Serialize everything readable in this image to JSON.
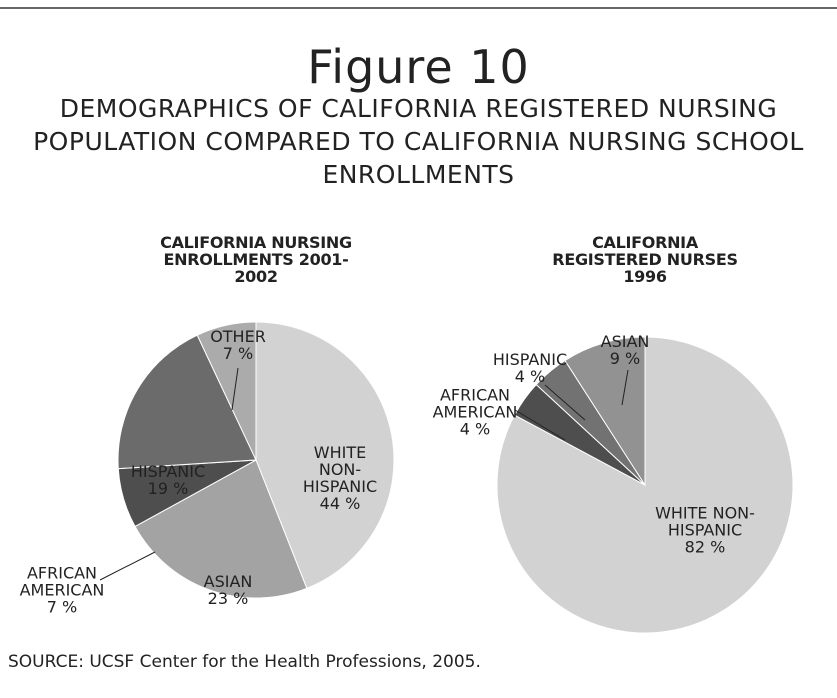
{
  "figure": {
    "title": "Figure 10",
    "subtitle": "DEMOGRAPHICS OF CALIFORNIA REGISTERED NURSING POPULATION COMPARED TO CALIFORNIA NURSING SCHOOL ENROLLMENTS",
    "source": "SOURCE: UCSF Center for the Health Professions, 2005."
  },
  "chart_data": [
    {
      "type": "pie",
      "title": "CALIFORNIA NURSING ENROLLMENTS 2001-2002",
      "categories": [
        "WHITE NON-HISPANIC",
        "ASIAN",
        "AFRICAN AMERICAN",
        "HISPANIC",
        "OTHER"
      ],
      "values": [
        44,
        23,
        7,
        19,
        7
      ],
      "value_labels": [
        "44 %",
        "23 %",
        "7 %",
        "19 %",
        "7 %"
      ],
      "colors": [
        "#d2d2d2",
        "#a3a3a3",
        "#4e4e4e",
        "#6b6b6b",
        "#ababab"
      ]
    },
    {
      "type": "pie",
      "title": "CALIFORNIA REGISTERED NURSES 1996",
      "categories": [
        "WHITE NON-HISPANIC",
        "AFRICAN AMERICAN",
        "HISPANIC",
        "ASIAN"
      ],
      "values": [
        82,
        4,
        4,
        9
      ],
      "value_labels": [
        "82 %",
        "4 %",
        "4 %",
        "9 %"
      ],
      "colors": [
        "#d2d2d2",
        "#4e4e4e",
        "#727272",
        "#929292"
      ]
    }
  ]
}
